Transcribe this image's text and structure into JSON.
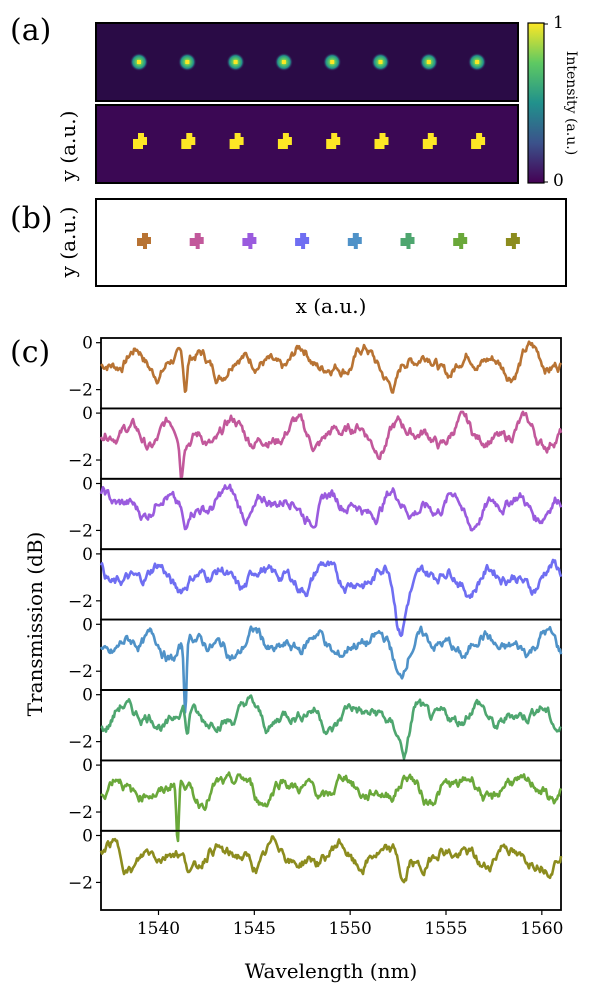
{
  "panels": {
    "a": "(a)",
    "b": "(b)",
    "c": "(c)"
  },
  "colorbar": {
    "label": "Intensity (a.u.)",
    "max_label": "1",
    "min_label": "0"
  },
  "panel_a": {
    "ylabel": "y (a.u.)",
    "spot_count": 8
  },
  "panel_b": {
    "ylabel": "y (a.u.)",
    "xlabel": "x (a.u.)",
    "marker_colors": [
      "#b87333",
      "#c2589b",
      "#9a5bde",
      "#6f6ef2",
      "#4f92c8",
      "#4ea66f",
      "#6aa83a",
      "#8c8c1e"
    ]
  },
  "chart_data": {
    "type": "line",
    "xlabel": "Wavelength (nm)",
    "ylabel": "Transmission (dB)",
    "xlim": [
      1537,
      1561
    ],
    "ylim_per_trace": [
      -2.8,
      0.2
    ],
    "xticks": [
      1540,
      1545,
      1550,
      1555,
      1560
    ],
    "yticks": [
      0,
      -2
    ],
    "grid": false,
    "series": [
      {
        "color": "#b87333",
        "baseline": -0.8,
        "dips": [
          {
            "x": 1541.4,
            "depth": 1.3,
            "width": 0.12
          },
          {
            "x": 1552.3,
            "depth": 0.9,
            "width": 0.4
          }
        ]
      },
      {
        "color": "#c2589b",
        "baseline": -0.9,
        "dips": [
          {
            "x": 1541.2,
            "depth": 1.6,
            "width": 0.12
          }
        ]
      },
      {
        "color": "#9a5bde",
        "baseline": -0.9,
        "dips": [
          {
            "x": 1541.4,
            "depth": 1.0,
            "width": 0.15
          },
          {
            "x": 1556.2,
            "depth": 0.7,
            "width": 0.4
          }
        ]
      },
      {
        "color": "#6f6ef2",
        "baseline": -1.0,
        "dips": [
          {
            "x": 1552.6,
            "depth": 1.9,
            "width": 0.35
          }
        ]
      },
      {
        "color": "#4f92c8",
        "baseline": -0.9,
        "dips": [
          {
            "x": 1541.4,
            "depth": 2.9,
            "width": 0.1
          },
          {
            "x": 1552.6,
            "depth": 0.9,
            "width": 0.3
          }
        ]
      },
      {
        "color": "#4ea66f",
        "baseline": -0.9,
        "dips": [
          {
            "x": 1541.5,
            "depth": 1.4,
            "width": 0.12
          },
          {
            "x": 1552.9,
            "depth": 1.7,
            "width": 0.35
          }
        ]
      },
      {
        "color": "#6aa83a",
        "baseline": -1.0,
        "dips": [
          {
            "x": 1541.0,
            "depth": 2.8,
            "width": 0.1
          }
        ]
      },
      {
        "color": "#8c8c1e",
        "baseline": -0.9,
        "dips": [
          {
            "x": 1552.8,
            "depth": 1.5,
            "width": 0.3
          }
        ]
      }
    ]
  }
}
